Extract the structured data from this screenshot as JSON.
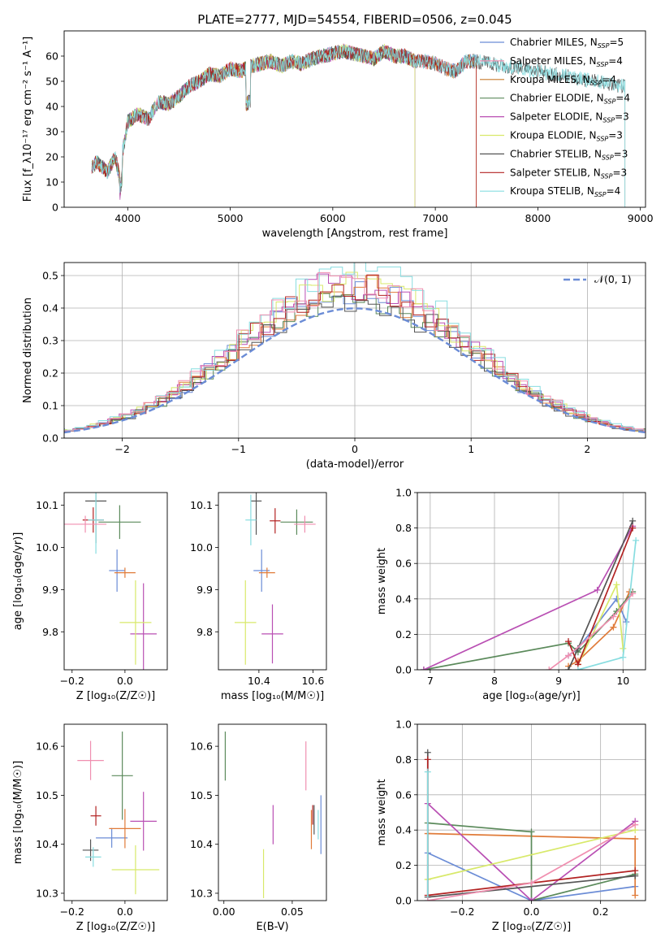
{
  "figure_title": "PLATE=2777, MJD=54554, FIBERID=0506, z=0.045",
  "colors": {
    "c1": "#6b8cd6",
    "c2": "#e07b39",
    "c3": "#5b8a5b",
    "c4": "#b94fb3",
    "c5": "#d8e96a",
    "c6": "#555555",
    "c7": "#b22222",
    "c8": "#88dde0",
    "c9": "#f08fb0",
    "c10": "#c97a2b"
  },
  "chart_data": [
    {
      "id": "spectrum",
      "type": "line",
      "title": "PLATE=2777, MJD=54554, FIBERID=0506, z=0.045",
      "xlabel": "wavelength [Angstrom, rest frame]",
      "ylabel": "Flux [f_λ10⁻¹⁷ erg cm⁻² s⁻¹ A⁻¹]",
      "xlim": [
        3380,
        9050
      ],
      "ylim": [
        0,
        70
      ],
      "xticks": [
        "4000",
        "5000",
        "6000",
        "7000",
        "8000",
        "9000"
      ],
      "yticks": [
        "0",
        "10",
        "20",
        "30",
        "40",
        "50",
        "60"
      ],
      "legend": "top-right",
      "spectrum_envelope": {
        "wavelength": [
          3650,
          3700,
          3800,
          3880,
          3920,
          3950,
          4000,
          4100,
          4200,
          4300,
          4400,
          4500,
          4600,
          4700,
          4800,
          4900,
          5000,
          5100,
          5200,
          5300,
          5400,
          5500,
          5600,
          5700,
          5800,
          5900,
          6000,
          6100,
          6200,
          6300,
          6400,
          6500,
          6600,
          6700,
          6800,
          6900,
          7000,
          7100,
          7200,
          7300,
          7400
        ],
        "flux": [
          16,
          18,
          14,
          20,
          12,
          22,
          34,
          37,
          35,
          42,
          41,
          44,
          48,
          50,
          53,
          52,
          55,
          54,
          56,
          57,
          58,
          56,
          58,
          57,
          59,
          60,
          61,
          62,
          61,
          60,
          59,
          62,
          60,
          60,
          58,
          58,
          57,
          55,
          54,
          58,
          58
        ]
      },
      "series": [
        {
          "name": "Chabrier MILES, N$_{SSP}$=5",
          "label_main": "Chabrier MILES, N",
          "label_sub": "SSP",
          "label_tail": "=5",
          "color": "#6b8cd6",
          "end": 7400
        },
        {
          "name": "Salpeter MILES, N$_{SSP}$=4",
          "label_main": "Salpeter MILES, N",
          "label_sub": "SSP",
          "label_tail": "=4",
          "color": "#f08fb0",
          "end": 7400
        },
        {
          "name": "Kroupa MILES, N$_{SSP}$=4",
          "label_main": "Kroupa MILES, N",
          "label_sub": "SSP",
          "label_tail": "=4",
          "color": "#c97a2b",
          "end": 7400
        },
        {
          "name": "Chabrier ELODIE, N$_{SSP}$=4",
          "label_main": "Chabrier ELODIE, N",
          "label_sub": "SSP",
          "label_tail": "=4",
          "color": "#5b8a5b",
          "end": 6800
        },
        {
          "name": "Salpeter ELODIE, N$_{SSP}$=3",
          "label_main": "Salpeter ELODIE, N",
          "label_sub": "SSP",
          "label_tail": "=3",
          "color": "#b94fb3",
          "end": 6800
        },
        {
          "name": "Kroupa ELODIE, N$_{SSP}$=3",
          "label_main": "Kroupa ELODIE, N",
          "label_sub": "SSP",
          "label_tail": "=3",
          "color": "#d8e96a",
          "end": 6800
        },
        {
          "name": "Chabrier STELIB, N$_{SSP}$=3",
          "label_main": "Chabrier STELIB, N",
          "label_sub": "SSP",
          "label_tail": "=3",
          "color": "#555555",
          "end": 8850
        },
        {
          "name": "Salpeter STELIB, N$_{SSP}$=3",
          "label_main": "Salpeter STELIB, N",
          "label_sub": "SSP",
          "label_tail": "=3",
          "color": "#b22222",
          "end": 7400
        },
        {
          "name": "Kroupa STELIB, N$_{SSP}$=4",
          "label_main": "Kroupa STELIB, N",
          "label_sub": "SSP",
          "label_tail": "=4",
          "color": "#88dde0",
          "end": 8850
        }
      ]
    },
    {
      "id": "residuals",
      "type": "bar",
      "xlabel": "(data-model)/error",
      "ylabel": "Normed distribution",
      "xlim": [
        -2.5,
        2.5
      ],
      "ylim": [
        0,
        0.54
      ],
      "xticks": [
        "−2",
        "−1",
        "0",
        "1",
        "2"
      ],
      "yticks": [
        "0.0",
        "0.1",
        "0.2",
        "0.3",
        "0.4",
        "0.5"
      ],
      "grid": true,
      "legend": "top-right",
      "reference": {
        "label": "𝒩(0, 1)",
        "mean": 0,
        "sigma": 1,
        "color": "#6b8cd6"
      },
      "bin_width": 0.1,
      "hist_series": [
        {
          "color": "#6b8cd6",
          "peak": 0.45,
          "seed": 1
        },
        {
          "color": "#e07b39",
          "peak": 0.46,
          "seed": 2
        },
        {
          "color": "#5b8a5b",
          "peak": 0.44,
          "seed": 3
        },
        {
          "color": "#b94fb3",
          "peak": 0.48,
          "seed": 4
        },
        {
          "color": "#d8e96a",
          "peak": 0.47,
          "seed": 5
        },
        {
          "color": "#555555",
          "peak": 0.43,
          "seed": 6
        },
        {
          "color": "#b22222",
          "peak": 0.46,
          "seed": 7
        },
        {
          "color": "#88dde0",
          "peak": 0.51,
          "seed": 8
        },
        {
          "color": "#f08fb0",
          "peak": 0.48,
          "seed": 9
        }
      ]
    },
    {
      "id": "age_vs_Z",
      "type": "scatter",
      "xlabel": "Z [log₁₀(Z/Z☉)]",
      "ylabel": "age  [log₁₀(age/yr)]",
      "xlim": [
        -0.23,
        0.16
      ],
      "ylim": [
        9.71,
        10.13
      ],
      "xticks": [
        "−0.2",
        "0.0"
      ],
      "yticks": [
        "9.8",
        "9.9",
        "10.0",
        "10.1"
      ],
      "points": [
        {
          "x": -0.03,
          "y": 9.945,
          "xerr": 0.03,
          "yerr": 0.05,
          "color": "#6b8cd6"
        },
        {
          "x": 0.0,
          "y": 9.94,
          "xerr": 0.04,
          "yerr": 0.012,
          "color": "#e07b39"
        },
        {
          "x": -0.02,
          "y": 10.06,
          "xerr": 0.08,
          "yerr": 0.04,
          "color": "#5b8a5b"
        },
        {
          "x": 0.07,
          "y": 9.795,
          "xerr": 0.05,
          "yerr": 0.12,
          "color": "#b94fb3"
        },
        {
          "x": 0.04,
          "y": 9.822,
          "xerr": 0.06,
          "yerr": 0.1,
          "color": "#d8e96a"
        },
        {
          "x": -0.11,
          "y": 10.11,
          "xerr": 0.04,
          "yerr": 0.1,
          "color": "#555555"
        },
        {
          "x": -0.12,
          "y": 10.065,
          "xerr": 0.04,
          "yerr": 0.03,
          "color": "#b22222"
        },
        {
          "x": -0.11,
          "y": 10.065,
          "xerr": 0.03,
          "yerr": 0.08,
          "color": "#88dde0"
        },
        {
          "x": -0.15,
          "y": 10.055,
          "xerr": 0.08,
          "yerr": 0.02,
          "color": "#f08fb0"
        }
      ]
    },
    {
      "id": "age_vs_mass",
      "type": "scatter",
      "xlabel": "mass [log₁₀(M/M☉)]",
      "ylabel": "",
      "xlim": [
        10.25,
        10.65
      ],
      "ylim": [
        9.71,
        10.13
      ],
      "xticks": [
        "10.4",
        "10.6"
      ],
      "yticks": [
        "9.8",
        "9.9",
        "10.0",
        "10.1"
      ],
      "points": [
        {
          "x": 10.41,
          "y": 9.945,
          "xerr": 0.03,
          "yerr": 0.05,
          "color": "#6b8cd6"
        },
        {
          "x": 10.43,
          "y": 9.94,
          "xerr": 0.03,
          "yerr": 0.012,
          "color": "#e07b39"
        },
        {
          "x": 10.54,
          "y": 10.06,
          "xerr": 0.06,
          "yerr": 0.03,
          "color": "#5b8a5b"
        },
        {
          "x": 10.45,
          "y": 9.795,
          "xerr": 0.04,
          "yerr": 0.07,
          "color": "#b94fb3"
        },
        {
          "x": 10.35,
          "y": 9.822,
          "xerr": 0.04,
          "yerr": 0.1,
          "color": "#d8e96a"
        },
        {
          "x": 10.39,
          "y": 10.11,
          "xerr": 0.02,
          "yerr": 0.08,
          "color": "#555555"
        },
        {
          "x": 10.46,
          "y": 10.063,
          "xerr": 0.02,
          "yerr": 0.03,
          "color": "#b22222"
        },
        {
          "x": 10.37,
          "y": 10.065,
          "xerr": 0.02,
          "yerr": 0.06,
          "color": "#88dde0"
        },
        {
          "x": 10.57,
          "y": 10.055,
          "xerr": 0.04,
          "yerr": 0.02,
          "color": "#f08fb0"
        }
      ]
    },
    {
      "id": "mass_weight_vs_age",
      "type": "line",
      "xlabel": "age  [log₁₀(age/yr)]",
      "ylabel": "mass weight",
      "xlim": [
        6.8,
        10.35
      ],
      "ylim": [
        0,
        1.0
      ],
      "xticks": [
        "7",
        "8",
        "9",
        "10"
      ],
      "yticks": [
        "0.0",
        "0.2",
        "0.4",
        "0.6",
        "0.8",
        "1.0"
      ],
      "grid": true,
      "series": [
        {
          "color": "#6b8cd6",
          "x": [
            9.15,
            9.3,
            9.9,
            10.05
          ],
          "y": [
            0.08,
            0.12,
            0.4,
            0.27
          ]
        },
        {
          "color": "#e07b39",
          "x": [
            9.15,
            9.3,
            9.85,
            10.1
          ],
          "y": [
            0.02,
            0.05,
            0.24,
            0.44
          ]
        },
        {
          "color": "#5b8a5b",
          "x": [
            6.9,
            9.15,
            9.3,
            9.9,
            10.15
          ],
          "y": [
            0.0,
            0.15,
            0.1,
            0.33,
            0.44
          ]
        },
        {
          "color": "#b94fb3",
          "x": [
            6.9,
            9.6,
            10.15
          ],
          "y": [
            0.0,
            0.45,
            0.81
          ]
        },
        {
          "color": "#d8e96a",
          "x": [
            9.3,
            9.9,
            10.0
          ],
          "y": [
            0.03,
            0.48,
            0.12
          ]
        },
        {
          "color": "#555555",
          "x": [
            9.15,
            9.3,
            10.15
          ],
          "y": [
            0.0,
            0.12,
            0.84
          ]
        },
        {
          "color": "#b22222",
          "x": [
            9.15,
            9.3,
            10.15
          ],
          "y": [
            0.16,
            0.03,
            0.8
          ]
        },
        {
          "color": "#88dde0",
          "x": [
            9.3,
            10.0,
            10.2
          ],
          "y": [
            0.0,
            0.07,
            0.73
          ]
        },
        {
          "color": "#f08fb0",
          "x": [
            8.85,
            9.15,
            9.85,
            10.15
          ],
          "y": [
            0.0,
            0.08,
            0.3,
            0.43
          ]
        }
      ]
    },
    {
      "id": "mass_vs_Z",
      "type": "scatter",
      "xlabel": "Z [log₁₀(Z/Z☉)]",
      "ylabel": "mass [log₁₀(M/M☉)]",
      "xlim": [
        -0.23,
        0.16
      ],
      "ylim": [
        10.285,
        10.645
      ],
      "xticks": [
        "−0.2",
        "0.0"
      ],
      "yticks": [
        "10.3",
        "10.4",
        "10.5",
        "10.6"
      ],
      "points": [
        {
          "x": -0.05,
          "y": 10.413,
          "xerr": 0.06,
          "yerr": 0.02,
          "color": "#6b8cd6"
        },
        {
          "x": 0.0,
          "y": 10.432,
          "xerr": 0.06,
          "yerr": 0.04,
          "color": "#e07b39"
        },
        {
          "x": -0.01,
          "y": 10.54,
          "xerr": 0.04,
          "yerr": 0.09,
          "color": "#5b8a5b"
        },
        {
          "x": 0.07,
          "y": 10.447,
          "xerr": 0.05,
          "yerr": 0.06,
          "color": "#b94fb3"
        },
        {
          "x": 0.04,
          "y": 10.348,
          "xerr": 0.09,
          "yerr": 0.05,
          "color": "#d8e96a"
        },
        {
          "x": -0.13,
          "y": 10.388,
          "xerr": 0.03,
          "yerr": 0.022,
          "color": "#555555"
        },
        {
          "x": -0.11,
          "y": 10.458,
          "xerr": 0.02,
          "yerr": 0.02,
          "color": "#b22222"
        },
        {
          "x": -0.12,
          "y": 10.374,
          "xerr": 0.03,
          "yerr": 0.02,
          "color": "#88dde0"
        },
        {
          "x": -0.13,
          "y": 10.571,
          "xerr": 0.05,
          "yerr": 0.04,
          "color": "#f08fb0"
        }
      ]
    },
    {
      "id": "mass_vs_EBV",
      "type": "scatter",
      "xlabel": "E(B-V)",
      "ylabel": "",
      "xlim": [
        -0.004,
        0.075
      ],
      "ylim": [
        10.285,
        10.645
      ],
      "xticks": [
        "0.00",
        "0.05"
      ],
      "yticks": [
        "10.3",
        "10.4",
        "10.5",
        "10.6"
      ],
      "points": [
        {
          "x": 0.071,
          "y": 10.44,
          "xerr": 0,
          "yerr": 0.06,
          "color": "#6b8cd6"
        },
        {
          "x": 0.064,
          "y": 10.43,
          "xerr": 0,
          "yerr": 0.04,
          "color": "#e07b39"
        },
        {
          "x": 0.001,
          "y": 10.58,
          "xerr": 0,
          "yerr": 0.05,
          "color": "#5b8a5b"
        },
        {
          "x": 0.036,
          "y": 10.44,
          "xerr": 0,
          "yerr": 0.04,
          "color": "#b94fb3"
        },
        {
          "x": 0.029,
          "y": 10.34,
          "xerr": 0,
          "yerr": 0.05,
          "color": "#d8e96a"
        },
        {
          "x": 0.066,
          "y": 10.45,
          "xerr": 0,
          "yerr": 0.03,
          "color": "#555555"
        },
        {
          "x": 0.065,
          "y": 10.46,
          "xerr": 0,
          "yerr": 0.02,
          "color": "#b22222"
        },
        {
          "x": 0.069,
          "y": 10.44,
          "xerr": 0,
          "yerr": 0.03,
          "color": "#88dde0"
        },
        {
          "x": 0.06,
          "y": 10.56,
          "xerr": 0,
          "yerr": 0.05,
          "color": "#f08fb0"
        }
      ]
    },
    {
      "id": "mass_weight_vs_Z",
      "type": "line",
      "xlabel": "Z [log₁₀(Z/Z☉)]",
      "ylabel": "mass weight",
      "xlim": [
        -0.33,
        0.33
      ],
      "ylim": [
        0,
        1.0
      ],
      "xticks": [
        "−0.2",
        "0.0",
        "0.2"
      ],
      "yticks": [
        "0.0",
        "0.2",
        "0.4",
        "0.6",
        "0.8",
        "1.0"
      ],
      "grid": true,
      "series": [
        {
          "color": "#6b8cd6",
          "x": [
            -0.3,
            0.0,
            0.3
          ],
          "y": [
            0.27,
            0.0,
            0.08
          ]
        },
        {
          "color": "#e07b39",
          "x": [
            -0.3,
            0.3,
            0.3
          ],
          "y": [
            0.38,
            0.35,
            0.03
          ]
        },
        {
          "color": "#5b8a5b",
          "x": [
            -0.3,
            0.0,
            0.0,
            0.3
          ],
          "y": [
            0.44,
            0.39,
            0.0,
            0.15
          ]
        },
        {
          "color": "#b94fb3",
          "x": [
            -0.3,
            0.0,
            0.3
          ],
          "y": [
            0.55,
            0.0,
            0.45
          ]
        },
        {
          "color": "#d8e96a",
          "x": [
            -0.3,
            0.3
          ],
          "y": [
            0.12,
            0.4
          ]
        },
        {
          "color": "#555555",
          "x": [
            -0.3,
            -0.3,
            0.3
          ],
          "y": [
            0.84,
            0.02,
            0.14
          ]
        },
        {
          "color": "#b22222",
          "x": [
            -0.3,
            -0.3,
            0.3
          ],
          "y": [
            0.8,
            0.03,
            0.17
          ]
        },
        {
          "color": "#88dde0",
          "x": [
            -0.3,
            -0.3
          ],
          "y": [
            0.73,
            0.0
          ]
        },
        {
          "color": "#f08fb0",
          "x": [
            -0.3,
            0.0,
            0.3
          ],
          "y": [
            0.0,
            0.1,
            0.43
          ]
        }
      ]
    }
  ]
}
